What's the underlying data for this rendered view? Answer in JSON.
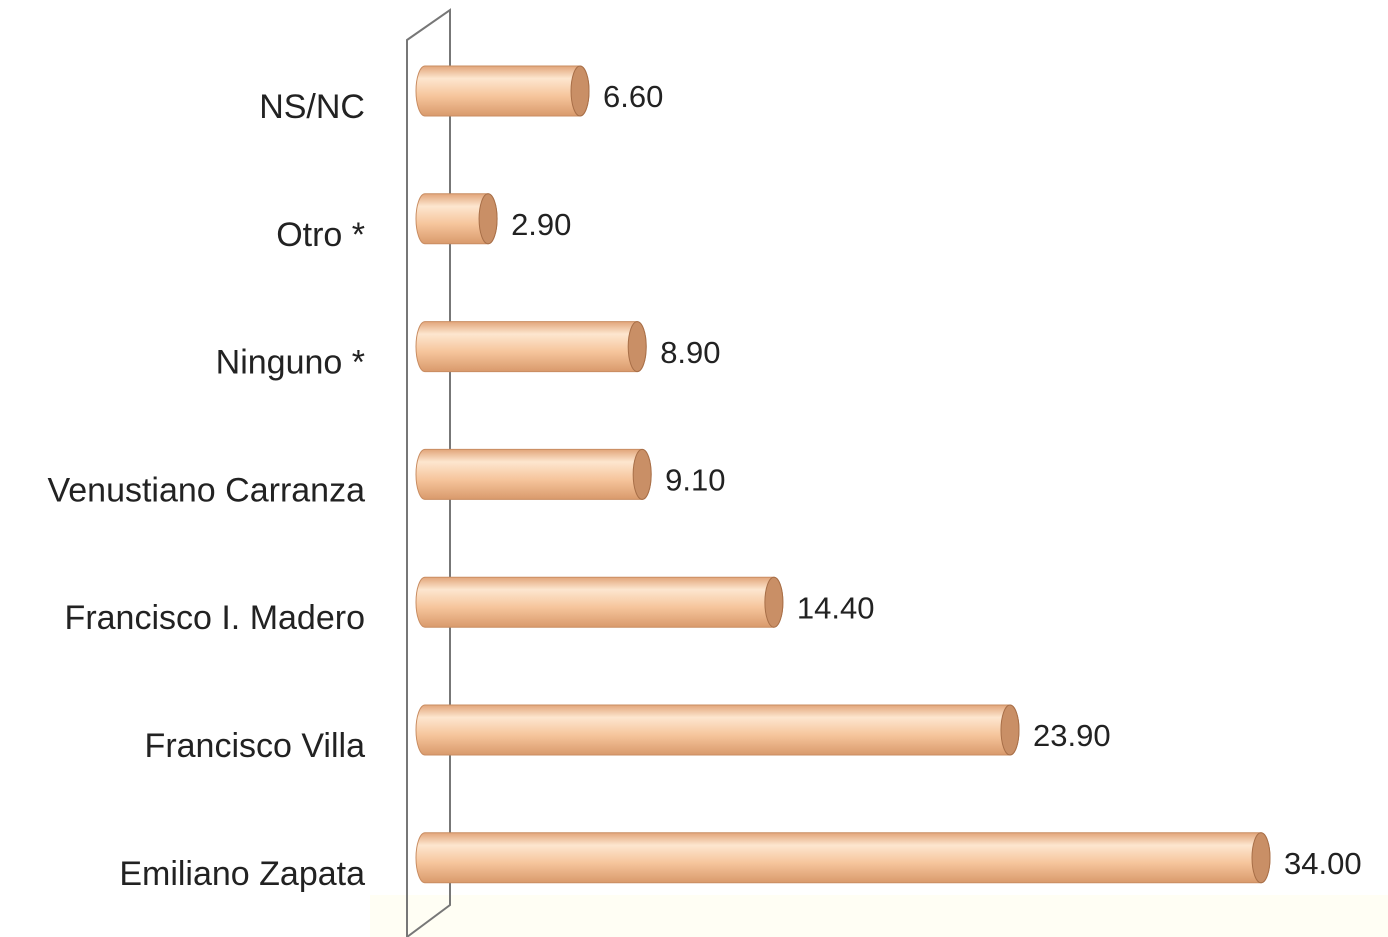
{
  "chart_data": {
    "type": "bar",
    "orientation": "horizontal",
    "categories": [
      "NS/NC",
      "Otro *",
      "Ninguno *",
      "Venustiano Carranza",
      "Francisco I. Madero",
      "Francisco Villa",
      "Emiliano Zapata"
    ],
    "values": [
      6.6,
      2.9,
      8.9,
      9.1,
      14.4,
      23.9,
      34.0
    ],
    "value_labels": [
      "6.60",
      "2.90",
      "8.90",
      "9.10",
      "14.40",
      "23.90",
      "34.00"
    ],
    "color": "#f2b98c"
  }
}
